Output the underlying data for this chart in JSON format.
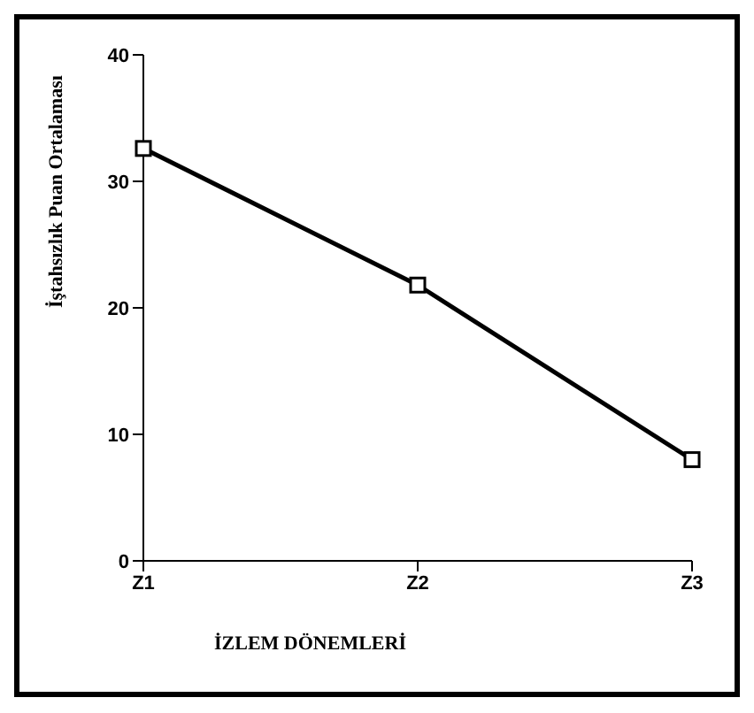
{
  "chart_data": {
    "type": "line",
    "categories": [
      "Z1",
      "Z2",
      "Z3"
    ],
    "series": [
      {
        "color": "#000000",
        "values": [
          32.6,
          21.8,
          8
        ]
      }
    ],
    "ylim": [
      0,
      40
    ],
    "yticks": [
      0,
      10,
      20,
      30,
      40
    ],
    "xlabel": "İZLEM DÖNEMLERİ",
    "ylabel": "İştahsızlık Puan Ortalaması",
    "marker": "square",
    "line_style": "solid",
    "grid": false,
    "legend": false
  }
}
